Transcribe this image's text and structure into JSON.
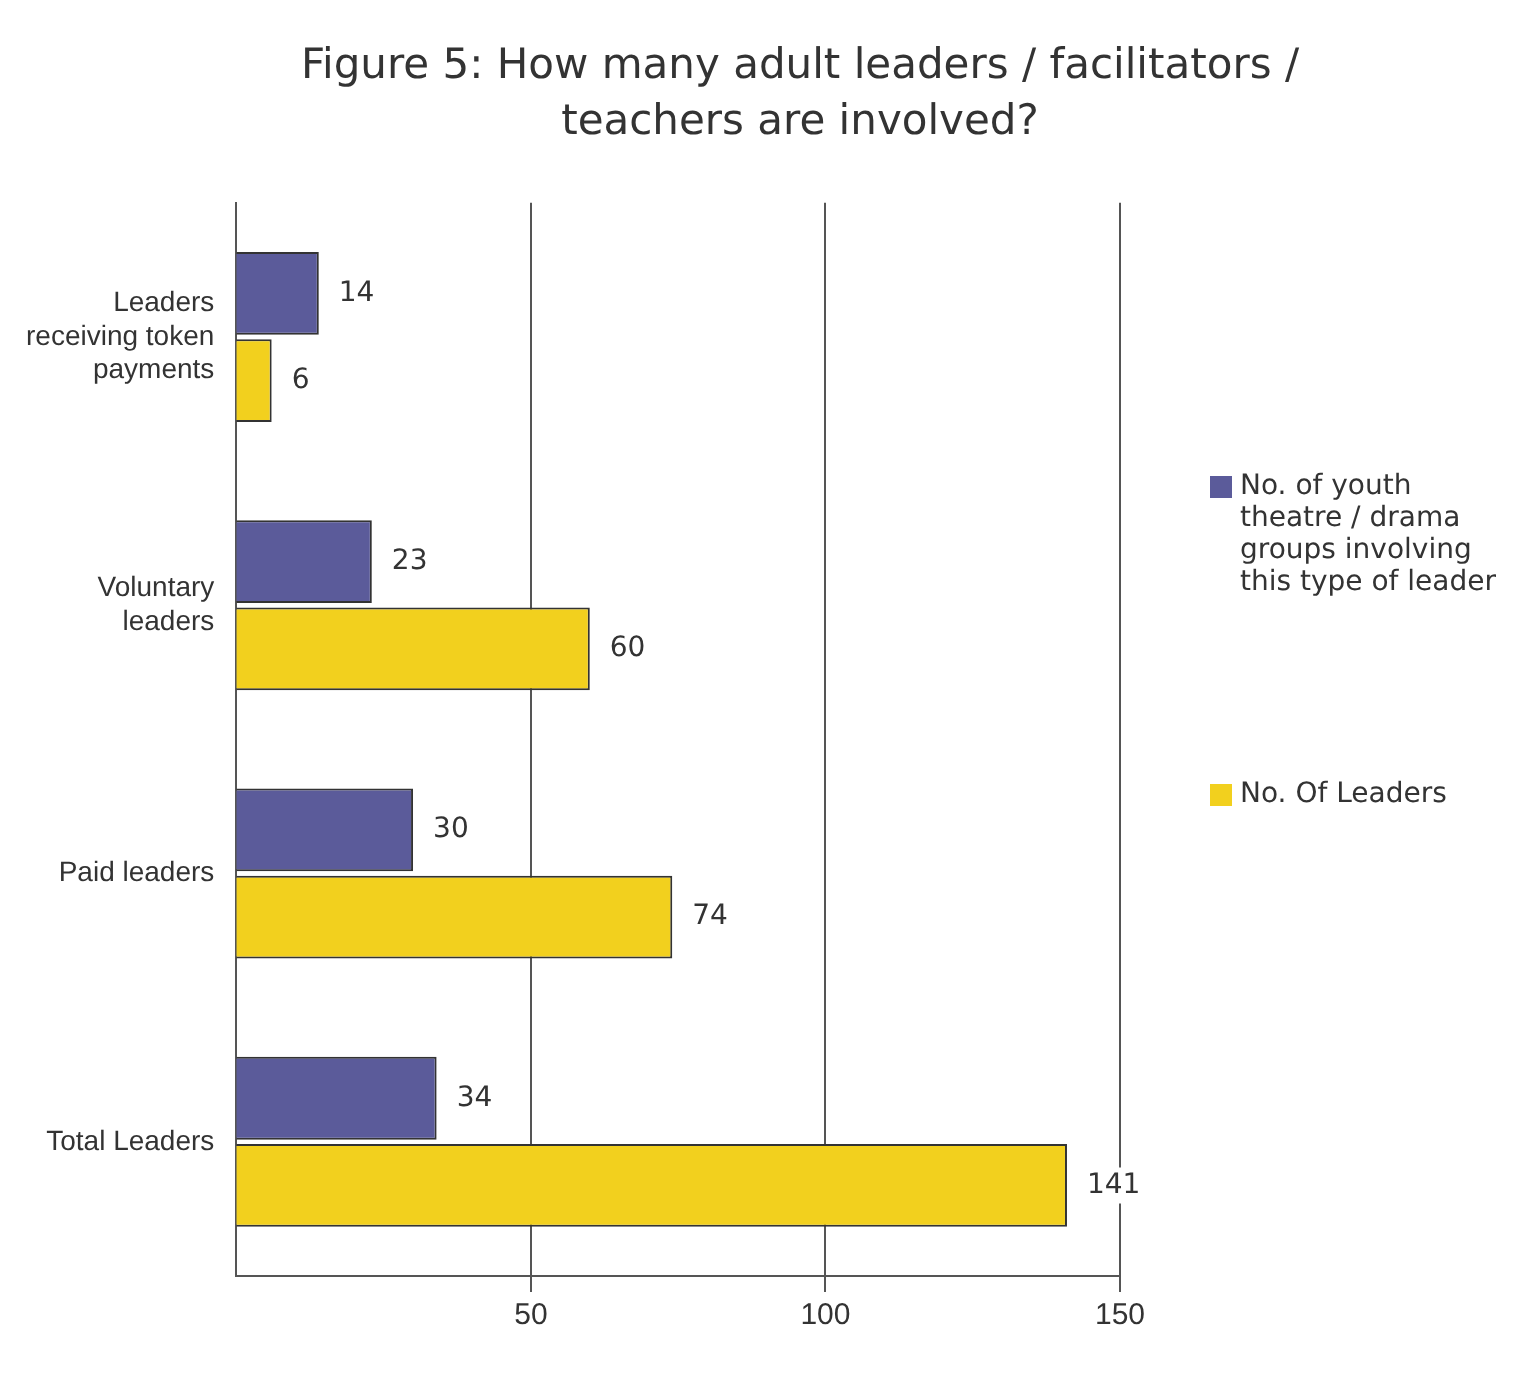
{
  "chart_data": {
    "type": "bar",
    "orientation": "horizontal",
    "title": "Figure 5: How many adult leaders / facilitators / teachers are involved?",
    "categories": [
      "Leaders receiving token payments",
      "Voluntary leaders",
      "Paid leaders",
      "Total Leaders"
    ],
    "series": [
      {
        "name": "No. of youth theatre / drama groups involving this type of leader",
        "color": "#5b5b9a",
        "values": [
          14,
          23,
          30,
          34
        ]
      },
      {
        "name": "No. Of Leaders",
        "color": "#f2d01e",
        "values": [
          6,
          60,
          74,
          141
        ]
      }
    ],
    "xlim": [
      0,
      150
    ],
    "xticks": [
      50,
      100,
      150
    ],
    "grid": "x",
    "legend": "right",
    "data_labels": true
  }
}
